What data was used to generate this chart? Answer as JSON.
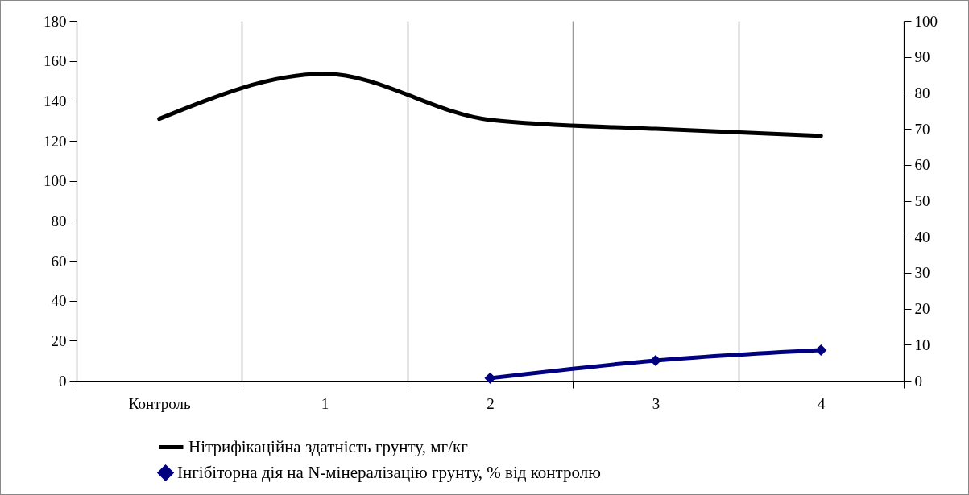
{
  "chart_data": {
    "type": "line",
    "categories": [
      "Контроль",
      "1",
      "2",
      "3",
      "4"
    ],
    "ylim": [
      0,
      180
    ],
    "yticks": [
      0,
      20,
      40,
      60,
      80,
      100,
      120,
      140,
      160,
      180
    ],
    "y2lim": [
      0,
      100
    ],
    "y2ticks": [
      0,
      10,
      20,
      30,
      40,
      50,
      60,
      70,
      80,
      90,
      100
    ],
    "grid": "x",
    "legend": "bottom",
    "series": [
      {
        "name": "Нітрифікаційна здатність грунту, мг/кг",
        "color": "#000000",
        "marker": "none",
        "values": [
          131,
          153.5,
          130.5,
          126,
          122.5
        ]
      },
      {
        "name": "Інгібіторна дія на N-мінералізацію грунту, % від контролю",
        "color": "#000080",
        "marker": "diamond",
        "axis": "y2",
        "values": [
          null,
          null,
          0.7,
          5.6,
          8.5
        ]
      }
    ]
  }
}
